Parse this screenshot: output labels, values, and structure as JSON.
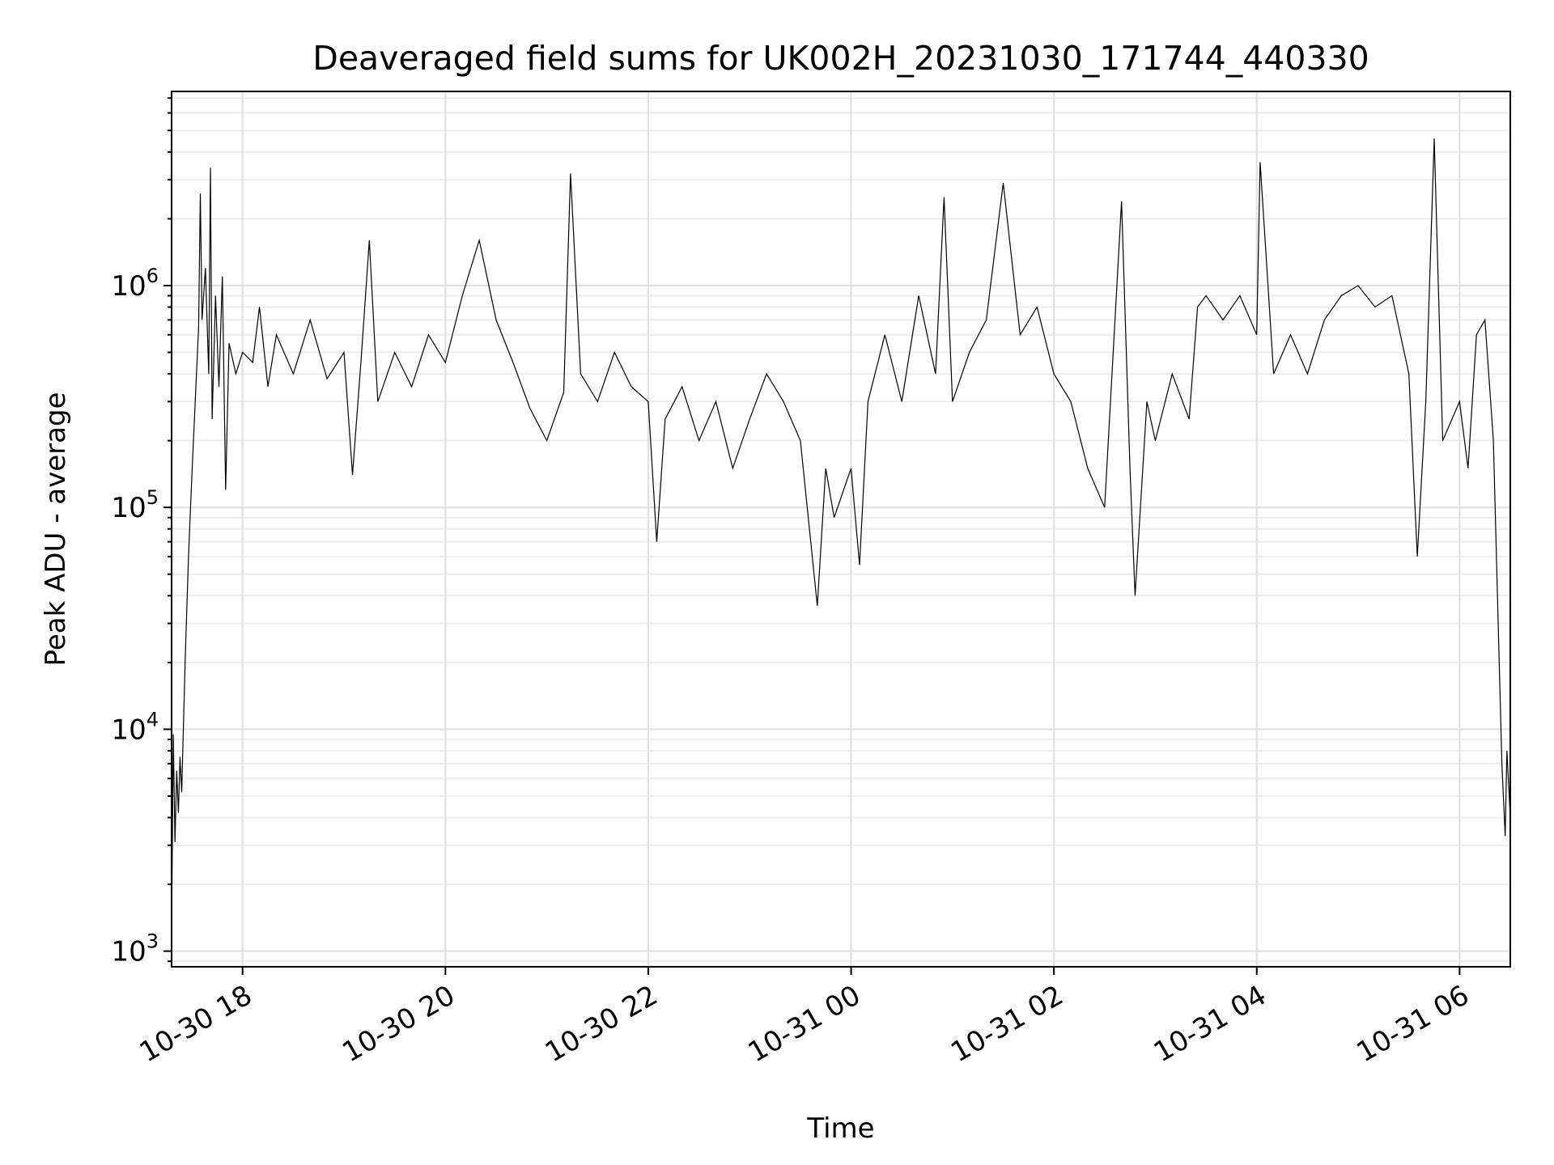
{
  "chart_data": {
    "type": "line",
    "title": "Deaveraged field sums for UK002H_20231030_171744_440330",
    "xlabel": "Time",
    "ylabel": "Peak ADU - average",
    "yscale": "log",
    "ylim": [
      850,
      7500000
    ],
    "xlim": [
      "2023-10-30 17:18",
      "2023-10-31 06:30"
    ],
    "grid": true,
    "x_ticks": [
      {
        "value": "2023-10-30 18:00",
        "label": "10-30 18"
      },
      {
        "value": "2023-10-30 20:00",
        "label": "10-30 20"
      },
      {
        "value": "2023-10-30 22:00",
        "label": "10-30 22"
      },
      {
        "value": "2023-10-31 00:00",
        "label": "10-31 00"
      },
      {
        "value": "2023-10-31 02:00",
        "label": "10-31 02"
      },
      {
        "value": "2023-10-31 04:00",
        "label": "10-31 04"
      },
      {
        "value": "2023-10-31 06:00",
        "label": "10-31 06"
      }
    ],
    "y_ticks": [
      {
        "value": 1000,
        "base": "10",
        "exp": "3"
      },
      {
        "value": 10000,
        "base": "10",
        "exp": "4"
      },
      {
        "value": 100000,
        "base": "10",
        "exp": "5"
      },
      {
        "value": 1000000,
        "base": "10",
        "exp": "6"
      }
    ],
    "series": [
      {
        "color": "#000000",
        "points": [
          [
            "2023-10-30 17:18",
            1200
          ],
          [
            "2023-10-30 17:19",
            9500
          ],
          [
            "2023-10-30 17:20",
            3100
          ],
          [
            "2023-10-30 17:21",
            6500
          ],
          [
            "2023-10-30 17:22",
            4200
          ],
          [
            "2023-10-30 17:23",
            7500
          ],
          [
            "2023-10-30 17:24",
            5200
          ],
          [
            "2023-10-30 17:26",
            20000
          ],
          [
            "2023-10-30 17:28",
            60000
          ],
          [
            "2023-10-30 17:30",
            140000
          ],
          [
            "2023-10-30 17:32",
            300000
          ],
          [
            "2023-10-30 17:34",
            650000
          ],
          [
            "2023-10-30 17:35",
            2600000
          ],
          [
            "2023-10-30 17:36",
            700000
          ],
          [
            "2023-10-30 17:38",
            1200000
          ],
          [
            "2023-10-30 17:40",
            400000
          ],
          [
            "2023-10-30 17:41",
            3400000
          ],
          [
            "2023-10-30 17:42",
            250000
          ],
          [
            "2023-10-30 17:44",
            900000
          ],
          [
            "2023-10-30 17:46",
            350000
          ],
          [
            "2023-10-30 17:48",
            1100000
          ],
          [
            "2023-10-30 17:50",
            120000
          ],
          [
            "2023-10-30 17:52",
            550000
          ],
          [
            "2023-10-30 17:56",
            400000
          ],
          [
            "2023-10-30 18:00",
            500000
          ],
          [
            "2023-10-30 18:06",
            450000
          ],
          [
            "2023-10-30 18:10",
            800000
          ],
          [
            "2023-10-30 18:15",
            350000
          ],
          [
            "2023-10-30 18:20",
            600000
          ],
          [
            "2023-10-30 18:30",
            400000
          ],
          [
            "2023-10-30 18:40",
            700000
          ],
          [
            "2023-10-30 18:50",
            380000
          ],
          [
            "2023-10-30 19:00",
            500000
          ],
          [
            "2023-10-30 19:05",
            140000
          ],
          [
            "2023-10-30 19:10",
            450000
          ],
          [
            "2023-10-30 19:15",
            1600000
          ],
          [
            "2023-10-30 19:20",
            300000
          ],
          [
            "2023-10-30 19:30",
            500000
          ],
          [
            "2023-10-30 19:40",
            350000
          ],
          [
            "2023-10-30 19:50",
            600000
          ],
          [
            "2023-10-30 20:00",
            450000
          ],
          [
            "2023-10-30 20:10",
            900000
          ],
          [
            "2023-10-30 20:20",
            1600000
          ],
          [
            "2023-10-30 20:30",
            700000
          ],
          [
            "2023-10-30 20:40",
            450000
          ],
          [
            "2023-10-30 20:50",
            280000
          ],
          [
            "2023-10-30 21:00",
            200000
          ],
          [
            "2023-10-30 21:10",
            330000
          ],
          [
            "2023-10-30 21:14",
            3200000
          ],
          [
            "2023-10-30 21:20",
            400000
          ],
          [
            "2023-10-30 21:30",
            300000
          ],
          [
            "2023-10-30 21:40",
            500000
          ],
          [
            "2023-10-30 21:50",
            350000
          ],
          [
            "2023-10-30 22:00",
            300000
          ],
          [
            "2023-10-30 22:05",
            70000
          ],
          [
            "2023-10-30 22:10",
            250000
          ],
          [
            "2023-10-30 22:20",
            350000
          ],
          [
            "2023-10-30 22:30",
            200000
          ],
          [
            "2023-10-30 22:40",
            300000
          ],
          [
            "2023-10-30 22:50",
            150000
          ],
          [
            "2023-10-30 23:00",
            250000
          ],
          [
            "2023-10-30 23:10",
            400000
          ],
          [
            "2023-10-30 23:20",
            300000
          ],
          [
            "2023-10-30 23:30",
            200000
          ],
          [
            "2023-10-30 23:40",
            36000
          ],
          [
            "2023-10-30 23:45",
            150000
          ],
          [
            "2023-10-30 23:50",
            90000
          ],
          [
            "2023-10-31 00:00",
            150000
          ],
          [
            "2023-10-31 00:05",
            55000
          ],
          [
            "2023-10-31 00:10",
            300000
          ],
          [
            "2023-10-31 00:20",
            600000
          ],
          [
            "2023-10-31 00:30",
            300000
          ],
          [
            "2023-10-31 00:40",
            900000
          ],
          [
            "2023-10-31 00:50",
            400000
          ],
          [
            "2023-10-31 00:55",
            2500000
          ],
          [
            "2023-10-31 01:00",
            300000
          ],
          [
            "2023-10-31 01:10",
            500000
          ],
          [
            "2023-10-31 01:20",
            700000
          ],
          [
            "2023-10-31 01:30",
            2900000
          ],
          [
            "2023-10-31 01:40",
            600000
          ],
          [
            "2023-10-31 01:50",
            800000
          ],
          [
            "2023-10-31 02:00",
            400000
          ],
          [
            "2023-10-31 02:10",
            300000
          ],
          [
            "2023-10-31 02:20",
            150000
          ],
          [
            "2023-10-31 02:30",
            100000
          ],
          [
            "2023-10-31 02:40",
            2400000
          ],
          [
            "2023-10-31 02:45",
            150000
          ],
          [
            "2023-10-31 02:48",
            40000
          ],
          [
            "2023-10-31 02:55",
            300000
          ],
          [
            "2023-10-31 03:00",
            200000
          ],
          [
            "2023-10-31 03:10",
            400000
          ],
          [
            "2023-10-31 03:20",
            250000
          ],
          [
            "2023-10-31 03:25",
            800000
          ],
          [
            "2023-10-31 03:30",
            900000
          ],
          [
            "2023-10-31 03:40",
            700000
          ],
          [
            "2023-10-31 03:50",
            900000
          ],
          [
            "2023-10-31 04:00",
            600000
          ],
          [
            "2023-10-31 04:02",
            3600000
          ],
          [
            "2023-10-31 04:10",
            400000
          ],
          [
            "2023-10-31 04:20",
            600000
          ],
          [
            "2023-10-31 04:30",
            400000
          ],
          [
            "2023-10-31 04:40",
            700000
          ],
          [
            "2023-10-31 04:50",
            900000
          ],
          [
            "2023-10-31 05:00",
            1000000
          ],
          [
            "2023-10-31 05:10",
            800000
          ],
          [
            "2023-10-31 05:20",
            900000
          ],
          [
            "2023-10-31 05:30",
            400000
          ],
          [
            "2023-10-31 05:35",
            60000
          ],
          [
            "2023-10-31 05:40",
            300000
          ],
          [
            "2023-10-31 05:45",
            4600000
          ],
          [
            "2023-10-31 05:50",
            200000
          ],
          [
            "2023-10-31 06:00",
            300000
          ],
          [
            "2023-10-31 06:05",
            150000
          ],
          [
            "2023-10-31 06:10",
            600000
          ],
          [
            "2023-10-31 06:15",
            700000
          ],
          [
            "2023-10-31 06:20",
            200000
          ],
          [
            "2023-10-31 06:25",
            7000
          ],
          [
            "2023-10-31 06:27",
            3300
          ],
          [
            "2023-10-31 06:28",
            8000
          ],
          [
            "2023-10-31 06:30",
            4000
          ]
        ]
      }
    ]
  }
}
